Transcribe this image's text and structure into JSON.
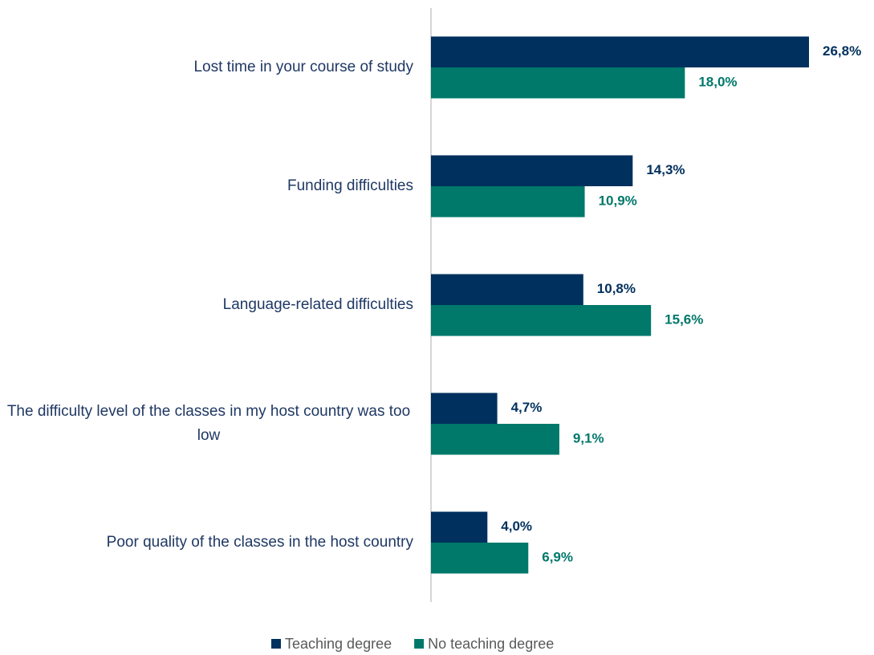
{
  "chart_data": {
    "type": "hbar",
    "categories": [
      "Lost time in your course of study",
      "Funding difficulties",
      "Language-related difficulties",
      "The difficulty level of the classes in my host country was too low",
      "Poor quality of the classes in the host country"
    ],
    "series": [
      {
        "name": "Teaching degree",
        "color": "#00305e",
        "values": [
          26.8,
          14.3,
          10.8,
          4.7,
          4.0
        ],
        "value_labels": [
          "26,8%",
          "14,3%",
          "10,8%",
          "4,7%",
          "4,0%"
        ]
      },
      {
        "name": "No teaching degree",
        "color": "#00786a",
        "values": [
          18.0,
          10.9,
          15.6,
          9.1,
          6.9
        ],
        "value_labels": [
          "18,0%",
          "10,9%",
          "15,6%",
          "9,1%",
          "6,9%"
        ]
      }
    ],
    "legend": "bottom"
  }
}
